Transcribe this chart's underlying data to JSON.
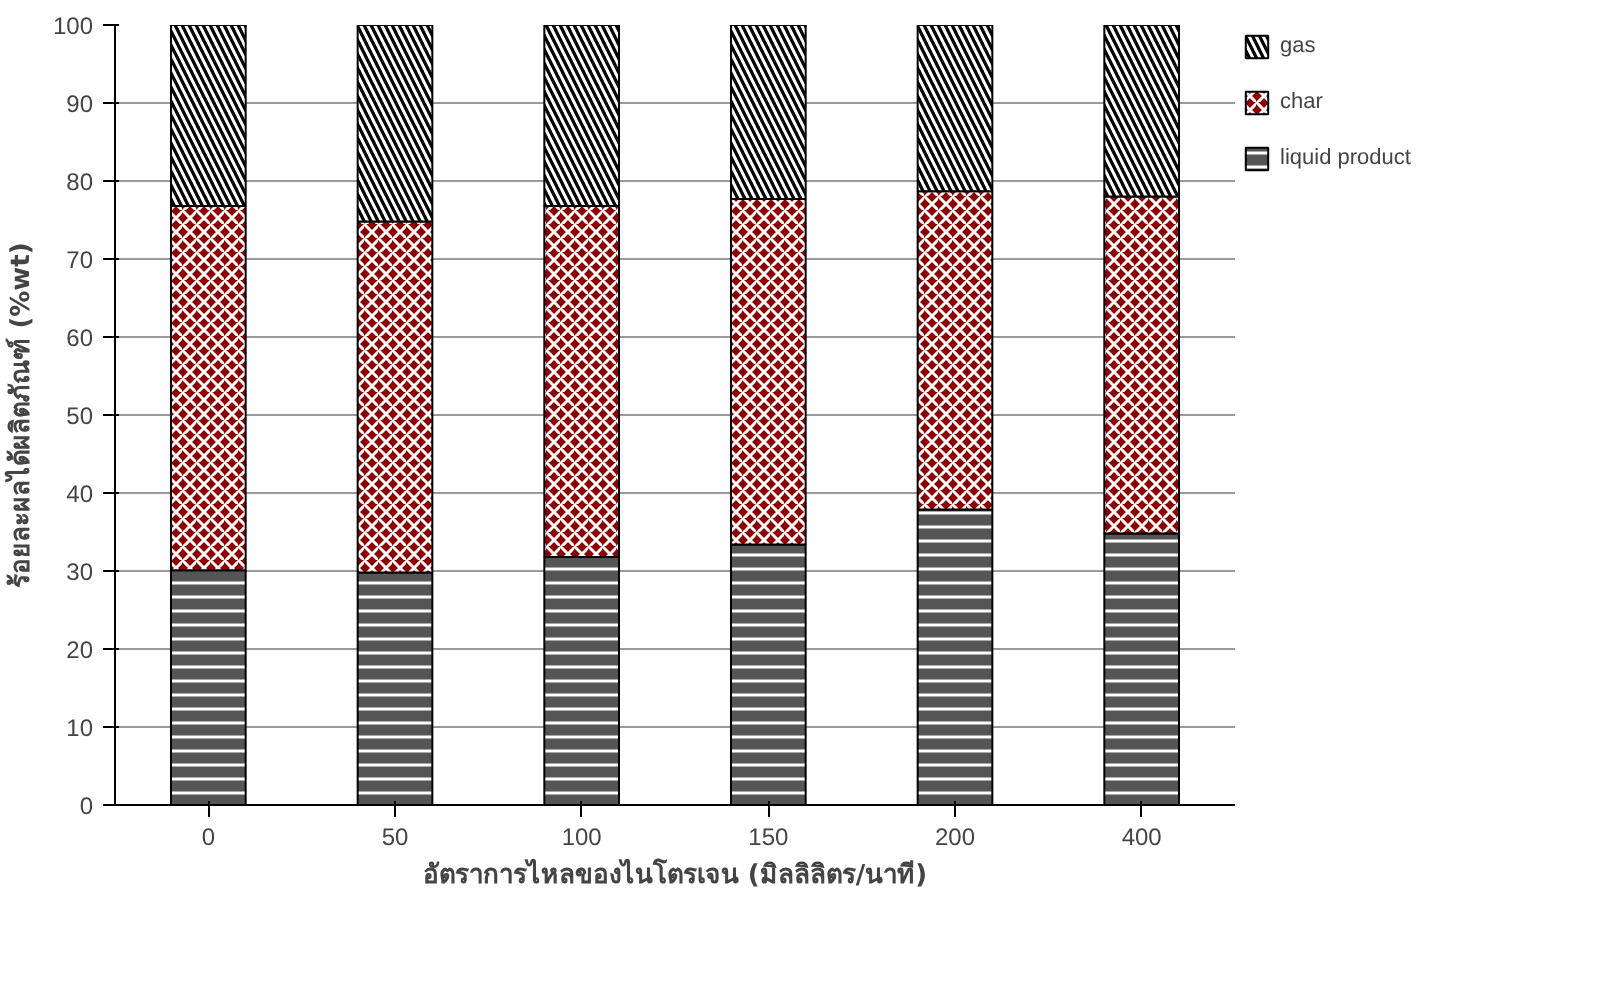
{
  "chart_data": {
    "type": "bar",
    "stacked": true,
    "xlabel": "อัตราการไหลของไนโตรเจน (มิลลิลิตร/นาที)",
    "ylabel": "ร้อยละผลได้ผลิตภัณฑ์ (%wt)",
    "categories": [
      "0",
      "50",
      "100",
      "150",
      "200",
      "400"
    ],
    "series": [
      {
        "name": "liquid product",
        "color": "#555555",
        "values": [
          30.1,
          29.8,
          31.8,
          33.4,
          37.9,
          34.8
        ]
      },
      {
        "name": "char",
        "color": "#8b0000",
        "values": [
          46.7,
          45.0,
          45.0,
          44.3,
          40.8,
          43.2
        ]
      },
      {
        "name": "gas",
        "color": "#000000",
        "values": [
          23.2,
          25.2,
          23.2,
          22.3,
          21.3,
          22.0
        ]
      }
    ],
    "ylim": [
      0,
      100
    ],
    "yticks": [
      0,
      10,
      20,
      30,
      40,
      50,
      60,
      70,
      80,
      90,
      100
    ],
    "grid": "y",
    "legend": "right"
  }
}
